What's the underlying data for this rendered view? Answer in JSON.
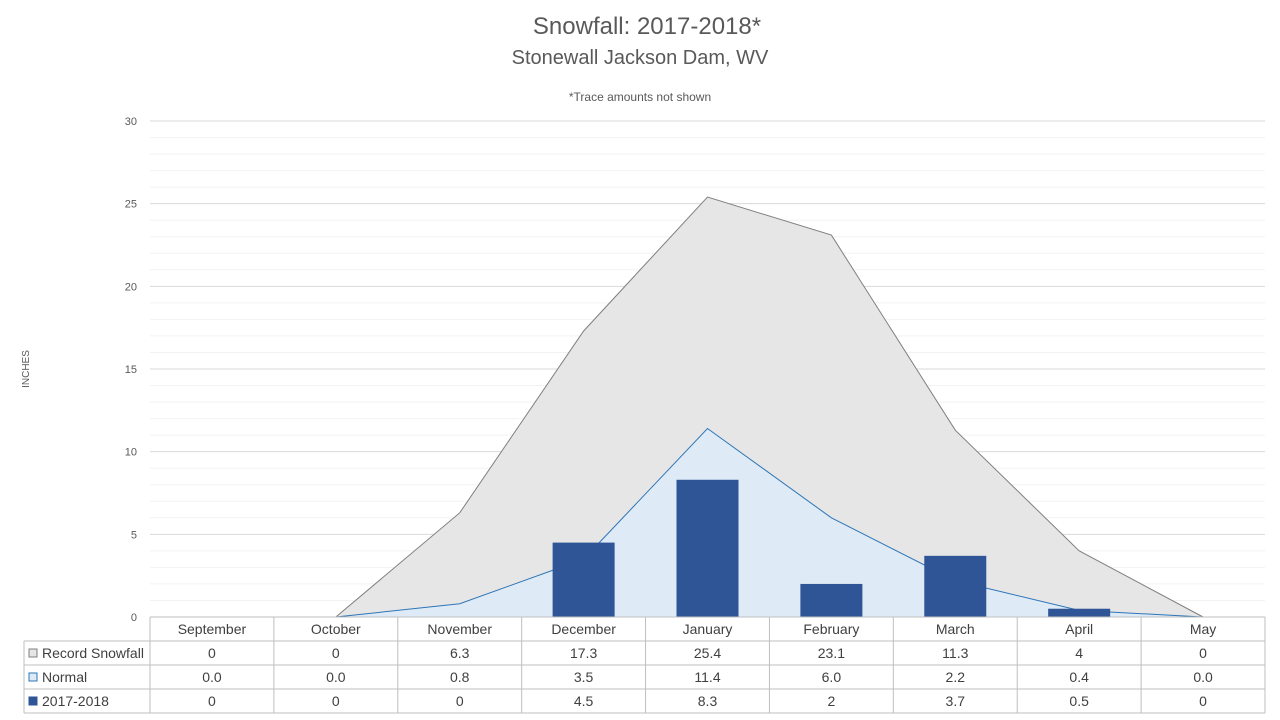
{
  "chart_data": {
    "type": "area",
    "title": "Snowfall: 2017-2018*",
    "subtitle": "Stonewall Jackson Dam, WV",
    "note": "*Trace amounts not shown",
    "ylabel": "INCHES",
    "ylim": [
      0,
      30
    ],
    "yticks": [
      0,
      5,
      10,
      15,
      20,
      25,
      30
    ],
    "grid": true,
    "categories": [
      "September",
      "October",
      "November",
      "December",
      "January",
      "February",
      "March",
      "April",
      "May"
    ],
    "series": [
      {
        "name": "Record Snowfall",
        "kind": "area",
        "color": "#e6e6e6",
        "stroke": "#7f7f7f",
        "values": [
          0,
          0,
          6.3,
          17.3,
          25.4,
          23.1,
          11.3,
          4,
          0
        ],
        "labels": [
          "0",
          "0",
          "6.3",
          "17.3",
          "25.4",
          "23.1",
          "11.3",
          "4",
          "0"
        ]
      },
      {
        "name": "Normal",
        "kind": "area",
        "color": "#deebf7",
        "stroke": "#2e75b6",
        "values": [
          0.0,
          0.0,
          0.8,
          3.5,
          11.4,
          6.0,
          2.2,
          0.4,
          0.0
        ],
        "labels": [
          "0.0",
          "0.0",
          "0.8",
          "3.5",
          "11.4",
          "6.0",
          "2.2",
          "0.4",
          "0.0"
        ]
      },
      {
        "name": "2017-2018",
        "kind": "bar",
        "color": "#2f5597",
        "values": [
          0,
          0,
          0,
          4.5,
          8.3,
          2,
          3.7,
          0.5,
          0
        ],
        "labels": [
          "0",
          "0",
          "0",
          "4.5",
          "8.3",
          "2",
          "3.7",
          "0.5",
          "0"
        ]
      }
    ]
  }
}
